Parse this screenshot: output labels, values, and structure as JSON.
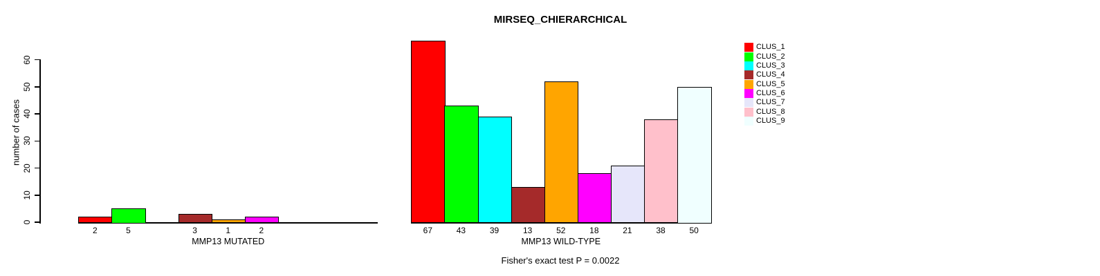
{
  "title": "MIRSEQ_CHIERARCHICAL",
  "footnote": "Fisher's exact test P = 0.0022",
  "y_axis": {
    "label": "number of cases",
    "ticks": [
      0,
      10,
      20,
      30,
      40,
      50,
      60
    ]
  },
  "legend": {
    "items": [
      {
        "label": "CLUS_1",
        "color": "#ff0000"
      },
      {
        "label": "CLUS_2",
        "color": "#00ff00"
      },
      {
        "label": "CLUS_3",
        "color": "#00ffff"
      },
      {
        "label": "CLUS_4",
        "color": "#a52a2a"
      },
      {
        "label": "CLUS_5",
        "color": "#ffa500"
      },
      {
        "label": "CLUS_6",
        "color": "#ff00ff"
      },
      {
        "label": "CLUS_7",
        "color": "#e6e6fa"
      },
      {
        "label": "CLUS_8",
        "color": "#ffc0cb"
      },
      {
        "label": "CLUS_9",
        "color": "#f0ffff"
      }
    ]
  },
  "chart_data": {
    "type": "bar",
    "title": "MIRSEQ_CHIERARCHICAL",
    "ylabel": "number of cases",
    "ylim": [
      0,
      60
    ],
    "grid": false,
    "legend_position": "right",
    "annotation": "Fisher's exact test P = 0.0022",
    "clusters": [
      "CLUS_1",
      "CLUS_2",
      "CLUS_3",
      "CLUS_4",
      "CLUS_5",
      "CLUS_6",
      "CLUS_7",
      "CLUS_8",
      "CLUS_9"
    ],
    "colors": [
      "#ff0000",
      "#00ff00",
      "#00ffff",
      "#a52a2a",
      "#ffa500",
      "#ff00ff",
      "#e6e6fa",
      "#ffc0cb",
      "#f0ffff"
    ],
    "bar_value_labels_shown": true,
    "groups": [
      {
        "label": "MMP13 MUTATED",
        "values": [
          2,
          5,
          0,
          3,
          1,
          2,
          0,
          0,
          0
        ]
      },
      {
        "label": "MMP13 WILD-TYPE",
        "values": [
          67,
          43,
          39,
          13,
          52,
          18,
          21,
          38,
          50
        ]
      }
    ]
  }
}
